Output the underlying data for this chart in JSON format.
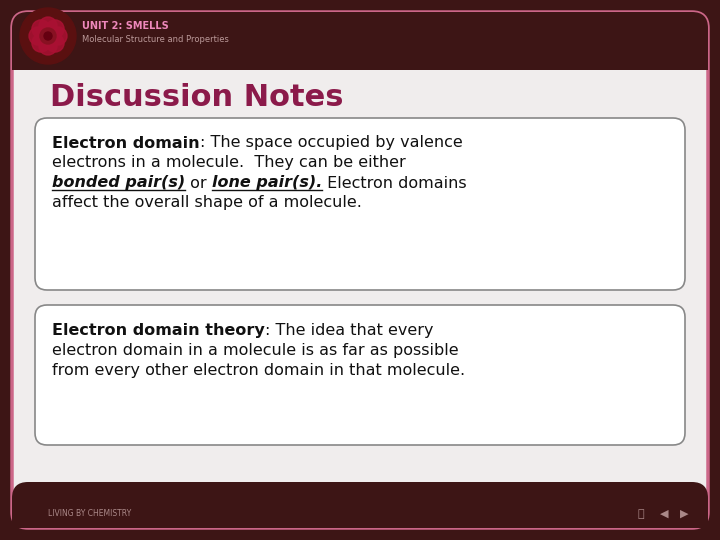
{
  "bg_outer": "#3d1515",
  "bg_inner": "#f0eded",
  "border_color": "#cc6688",
  "title": "Discussion Notes",
  "title_color": "#8b1a4a",
  "header_bg": "#3d1515",
  "header_text1": "UNIT 2: SMELLS",
  "header_text2": "Molecular Structure and Properties",
  "header_text1_color": "#ee88bb",
  "header_text2_color": "#bb9999",
  "box_bg": "#ffffff",
  "box_border": "#888888",
  "text_color": "#111111",
  "font_size_title": 22,
  "font_size_header1": 7,
  "font_size_header2": 6,
  "font_size_body": 11.5,
  "footer_text": "LIVING BY CHEMISTRY",
  "footer_color": "#aa8888"
}
